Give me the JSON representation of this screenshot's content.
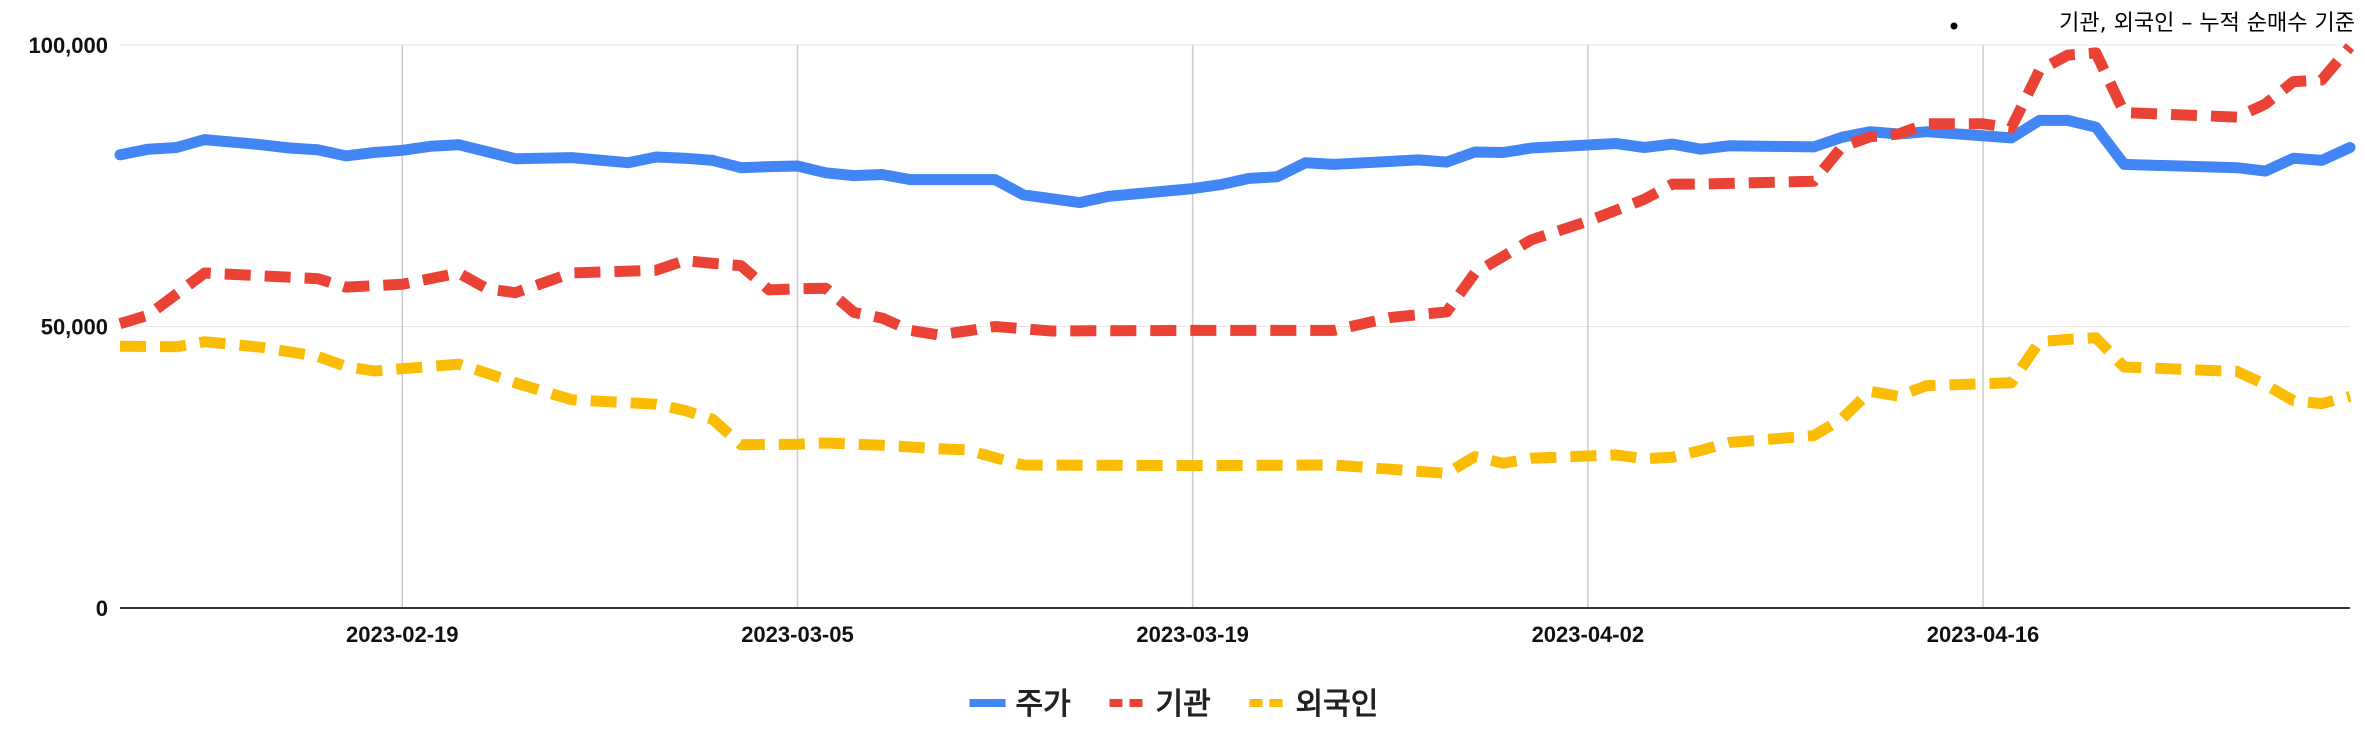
{
  "chart_data": {
    "type": "line",
    "subtitle": "기관, 외국인 – 누적 순매수 기준",
    "ylim": [
      0,
      100000
    ],
    "y_ticks": [
      {
        "value": 0,
        "label": "0"
      },
      {
        "value": 50000,
        "label": "50,000"
      },
      {
        "value": 100000,
        "label": "100,000"
      }
    ],
    "x_range": [
      "2023-02-09",
      "2023-04-29"
    ],
    "x_ticks": [
      {
        "date": "2023-02-19",
        "label": "2023-02-19"
      },
      {
        "date": "2023-03-05",
        "label": "2023-03-05"
      },
      {
        "date": "2023-03-19",
        "label": "2023-03-19"
      },
      {
        "date": "2023-04-02",
        "label": "2023-04-02"
      },
      {
        "date": "2023-04-16",
        "label": "2023-04-16"
      }
    ],
    "grid": "vertical at x ticks, horizontal at y ticks",
    "legend_position": "bottom",
    "series": [
      {
        "name": "주가",
        "color": "#4285F4",
        "style": "solid",
        "points": [
          [
            "2023-02-09",
            80500
          ],
          [
            "2023-02-10",
            81500
          ],
          [
            "2023-02-11",
            81800
          ],
          [
            "2023-02-12",
            83200
          ],
          [
            "2023-02-14",
            82300
          ],
          [
            "2023-02-15",
            81700
          ],
          [
            "2023-02-16",
            81400
          ],
          [
            "2023-02-17",
            80300
          ],
          [
            "2023-02-18",
            80900
          ],
          [
            "2023-02-19",
            81300
          ],
          [
            "2023-02-20",
            82000
          ],
          [
            "2023-02-21",
            82300
          ],
          [
            "2023-02-23",
            79800
          ],
          [
            "2023-02-25",
            80000
          ],
          [
            "2023-02-27",
            79100
          ],
          [
            "2023-02-28",
            80100
          ],
          [
            "2023-03-01",
            79900
          ],
          [
            "2023-03-02",
            79500
          ],
          [
            "2023-03-03",
            78200
          ],
          [
            "2023-03-04",
            78400
          ],
          [
            "2023-03-05",
            78500
          ],
          [
            "2023-03-06",
            77300
          ],
          [
            "2023-03-07",
            76800
          ],
          [
            "2023-03-08",
            77000
          ],
          [
            "2023-03-09",
            76100
          ],
          [
            "2023-03-12",
            76100
          ],
          [
            "2023-03-13",
            73400
          ],
          [
            "2023-03-14",
            72700
          ],
          [
            "2023-03-15",
            72000
          ],
          [
            "2023-03-16",
            73100
          ],
          [
            "2023-03-19",
            74500
          ],
          [
            "2023-03-20",
            75200
          ],
          [
            "2023-03-21",
            76300
          ],
          [
            "2023-03-22",
            76600
          ],
          [
            "2023-03-23",
            79100
          ],
          [
            "2023-03-24",
            78800
          ],
          [
            "2023-03-27",
            79600
          ],
          [
            "2023-03-28",
            79200
          ],
          [
            "2023-03-29",
            81000
          ],
          [
            "2023-03-30",
            80900
          ],
          [
            "2023-03-31",
            81700
          ],
          [
            "2023-04-03",
            82500
          ],
          [
            "2023-04-04",
            81800
          ],
          [
            "2023-04-05",
            82400
          ],
          [
            "2023-04-06",
            81500
          ],
          [
            "2023-04-07",
            82100
          ],
          [
            "2023-04-10",
            81900
          ],
          [
            "2023-04-11",
            83600
          ],
          [
            "2023-04-12",
            84600
          ],
          [
            "2023-04-13",
            84200
          ],
          [
            "2023-04-14",
            84600
          ],
          [
            "2023-04-17",
            83500
          ],
          [
            "2023-04-18",
            86600
          ],
          [
            "2023-04-19",
            86600
          ],
          [
            "2023-04-20",
            85400
          ],
          [
            "2023-04-21",
            78800
          ],
          [
            "2023-04-25",
            78200
          ],
          [
            "2023-04-26",
            77600
          ],
          [
            "2023-04-27",
            79900
          ],
          [
            "2023-04-28",
            79500
          ],
          [
            "2023-04-29",
            81800
          ]
        ]
      },
      {
        "name": "기관",
        "color": "#EA4335",
        "style": "dashed",
        "points": [
          [
            "2023-02-09",
            50500
          ],
          [
            "2023-02-10",
            52000
          ],
          [
            "2023-02-12",
            59500
          ],
          [
            "2023-02-14",
            59000
          ],
          [
            "2023-02-16",
            58500
          ],
          [
            "2023-02-17",
            57000
          ],
          [
            "2023-02-19",
            57500
          ],
          [
            "2023-02-20",
            58500
          ],
          [
            "2023-02-21",
            59500
          ],
          [
            "2023-02-22",
            56700
          ],
          [
            "2023-02-23",
            56000
          ],
          [
            "2023-02-25",
            59500
          ],
          [
            "2023-02-28",
            60000
          ],
          [
            "2023-03-01",
            61700
          ],
          [
            "2023-03-02",
            61200
          ],
          [
            "2023-03-03",
            60800
          ],
          [
            "2023-03-04",
            56500
          ],
          [
            "2023-03-05",
            56700
          ],
          [
            "2023-03-06",
            56800
          ],
          [
            "2023-03-07",
            52500
          ],
          [
            "2023-03-08",
            51500
          ],
          [
            "2023-03-09",
            49300
          ],
          [
            "2023-03-10",
            48500
          ],
          [
            "2023-03-11",
            49200
          ],
          [
            "2023-03-12",
            50000
          ],
          [
            "2023-03-14",
            49200
          ],
          [
            "2023-03-19",
            49300
          ],
          [
            "2023-03-24",
            49300
          ],
          [
            "2023-03-26",
            51600
          ],
          [
            "2023-03-28",
            52600
          ],
          [
            "2023-03-29",
            59500
          ],
          [
            "2023-03-31",
            65400
          ],
          [
            "2023-04-02",
            68700
          ],
          [
            "2023-04-04",
            72600
          ],
          [
            "2023-04-05",
            75300
          ],
          [
            "2023-04-06",
            75300
          ],
          [
            "2023-04-10",
            75800
          ],
          [
            "2023-04-11",
            81900
          ],
          [
            "2023-04-12",
            83700
          ],
          [
            "2023-04-13",
            84200
          ],
          [
            "2023-04-14",
            86000
          ],
          [
            "2023-04-16",
            86000
          ],
          [
            "2023-04-17",
            85300
          ],
          [
            "2023-04-18",
            95500
          ],
          [
            "2023-04-19",
            98200
          ],
          [
            "2023-04-20",
            98600
          ],
          [
            "2023-04-21",
            88000
          ],
          [
            "2023-04-25",
            87200
          ],
          [
            "2023-04-26",
            89500
          ],
          [
            "2023-04-27",
            93500
          ],
          [
            "2023-04-28",
            93800
          ],
          [
            "2023-04-29",
            99700
          ]
        ]
      },
      {
        "name": "외국인",
        "color": "#FBBC04",
        "style": "dashed",
        "points": [
          [
            "2023-02-09",
            46500
          ],
          [
            "2023-02-11",
            46400
          ],
          [
            "2023-02-12",
            47300
          ],
          [
            "2023-02-14",
            46300
          ],
          [
            "2023-02-16",
            44700
          ],
          [
            "2023-02-17",
            42900
          ],
          [
            "2023-02-18",
            42100
          ],
          [
            "2023-02-19",
            42500
          ],
          [
            "2023-02-21",
            43300
          ],
          [
            "2023-02-22",
            41700
          ],
          [
            "2023-02-23",
            40000
          ],
          [
            "2023-02-25",
            37000
          ],
          [
            "2023-02-28",
            36200
          ],
          [
            "2023-03-01",
            35100
          ],
          [
            "2023-03-02",
            33500
          ],
          [
            "2023-03-03",
            29000
          ],
          [
            "2023-03-05",
            29100
          ],
          [
            "2023-03-06",
            29300
          ],
          [
            "2023-03-08",
            28900
          ],
          [
            "2023-03-10",
            28300
          ],
          [
            "2023-03-11",
            28100
          ],
          [
            "2023-03-12",
            26700
          ],
          [
            "2023-03-13",
            25400
          ],
          [
            "2023-03-19",
            25300
          ],
          [
            "2023-03-24",
            25400
          ],
          [
            "2023-03-28",
            23900
          ],
          [
            "2023-03-29",
            26900
          ],
          [
            "2023-03-30",
            25700
          ],
          [
            "2023-03-31",
            26600
          ],
          [
            "2023-04-03",
            27200
          ],
          [
            "2023-04-04",
            26500
          ],
          [
            "2023-04-05",
            26800
          ],
          [
            "2023-04-06",
            28000
          ],
          [
            "2023-04-07",
            29400
          ],
          [
            "2023-04-10",
            30600
          ],
          [
            "2023-04-11",
            33600
          ],
          [
            "2023-04-12",
            38500
          ],
          [
            "2023-04-13",
            37600
          ],
          [
            "2023-04-14",
            39500
          ],
          [
            "2023-04-17",
            40000
          ],
          [
            "2023-04-18",
            47300
          ],
          [
            "2023-04-19",
            47700
          ],
          [
            "2023-04-20",
            48000
          ],
          [
            "2023-04-21",
            42800
          ],
          [
            "2023-04-25",
            42000
          ],
          [
            "2023-04-26",
            39700
          ],
          [
            "2023-04-27",
            36800
          ],
          [
            "2023-04-28",
            36300
          ],
          [
            "2023-04-29",
            37600
          ]
        ]
      }
    ]
  }
}
